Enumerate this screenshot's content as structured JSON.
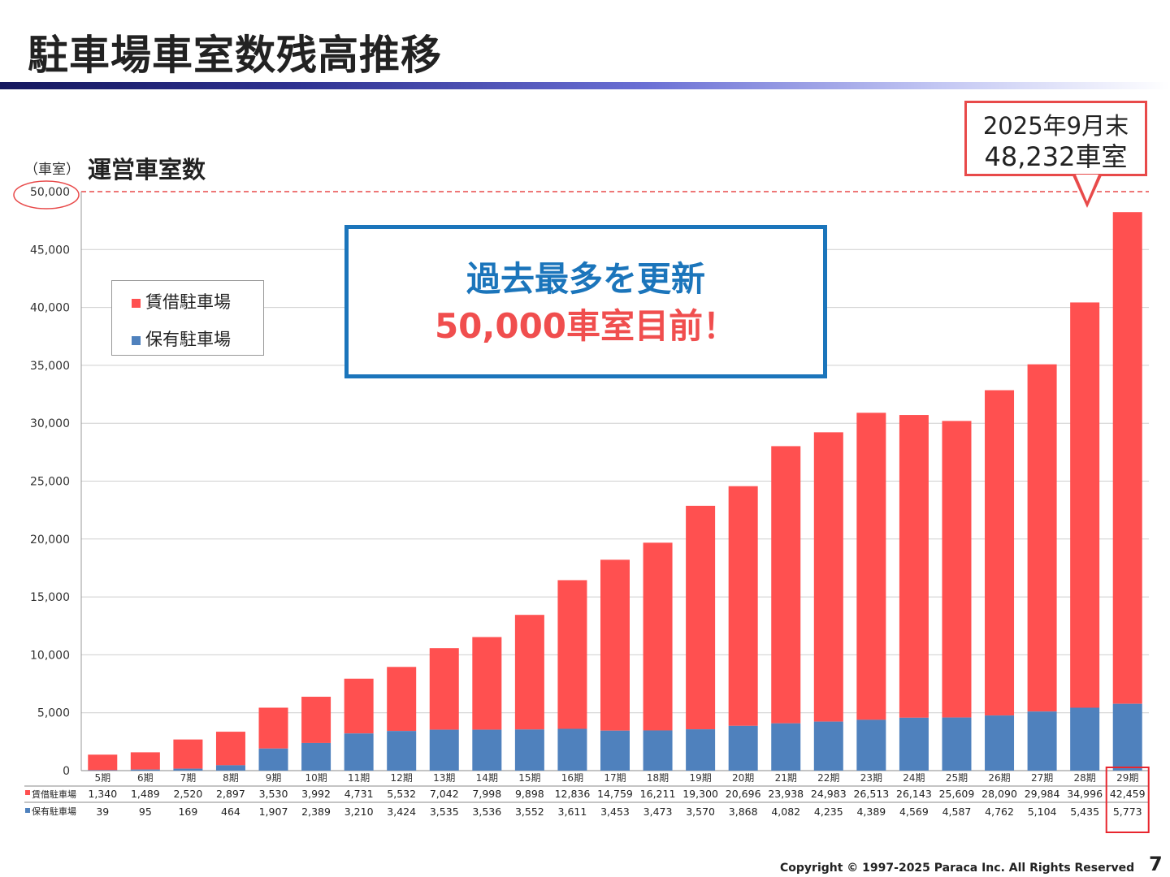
{
  "slide": {
    "title": "駐車場車室数残高推移",
    "unit_label": "（車室）",
    "axis_title": "運営車室数",
    "callout_line1": "2025年9月末",
    "callout_line2": "48,232車室",
    "highlight_line1": "過去最多を更新",
    "highlight_line2": "50,000車室目前！",
    "footer": "Copyright © 1997-2025  Paraca Inc.  All Rights Reserved",
    "page_number": "7"
  },
  "colors": {
    "rental": "#ff5050",
    "owned": "#4f81bd",
    "accent_blue": "#1b75bb",
    "accent_red": "#e84a4a"
  },
  "chart_data": {
    "type": "bar",
    "stacked": true,
    "categories": [
      "5期",
      "6期",
      "7期",
      "8期",
      "9期",
      "10期",
      "11期",
      "12期",
      "13期",
      "14期",
      "15期",
      "16期",
      "17期",
      "18期",
      "19期",
      "20期",
      "21期",
      "22期",
      "23期",
      "24期",
      "25期",
      "26期",
      "27期",
      "28期",
      "29期"
    ],
    "series": [
      {
        "name": "賃借駐車場",
        "values": [
          1340,
          1489,
          2520,
          2897,
          3530,
          3992,
          4731,
          5532,
          7042,
          7998,
          9898,
          12836,
          14759,
          16211,
          19300,
          20696,
          23938,
          24983,
          26513,
          26143,
          25609,
          28090,
          29984,
          34996,
          42459
        ]
      },
      {
        "name": "保有駐車場",
        "values": [
          39,
          95,
          169,
          464,
          1907,
          2389,
          3210,
          3424,
          3535,
          3536,
          3552,
          3611,
          3453,
          3473,
          3570,
          3868,
          4082,
          4235,
          4389,
          4569,
          4587,
          4762,
          5104,
          5435,
          5773
        ]
      }
    ],
    "table_labels": [
      "1,340",
      "1,489",
      "2,520",
      "2,897",
      "3,530",
      "3,992",
      "4,731",
      "5,532",
      "7,042",
      "7,998",
      "9,898",
      "12,836",
      "14,759",
      "16,211",
      "19,300",
      "20,696",
      "23,938",
      "24,983",
      "26,513",
      "26,143",
      "25,609",
      "28,090",
      "29,984",
      "34,996",
      "42,459"
    ],
    "table_labels_owned": [
      "39",
      "95",
      "169",
      "464",
      "1,907",
      "2,389",
      "3,210",
      "3,424",
      "3,535",
      "3,536",
      "3,552",
      "3,611",
      "3,453",
      "3,473",
      "3,570",
      "3,868",
      "4,082",
      "4,235",
      "4,389",
      "4,569",
      "4,587",
      "4,762",
      "5,104",
      "5,435",
      "5,773"
    ],
    "y_ticks": [
      "0",
      "5,000",
      "10,000",
      "15,000",
      "20,000",
      "25,000",
      "30,000",
      "35,000",
      "40,000",
      "45,000",
      "50,000"
    ],
    "ylim": [
      0,
      50000
    ],
    "reference_line": 50000,
    "grid": true,
    "legend_position": "top-left"
  }
}
